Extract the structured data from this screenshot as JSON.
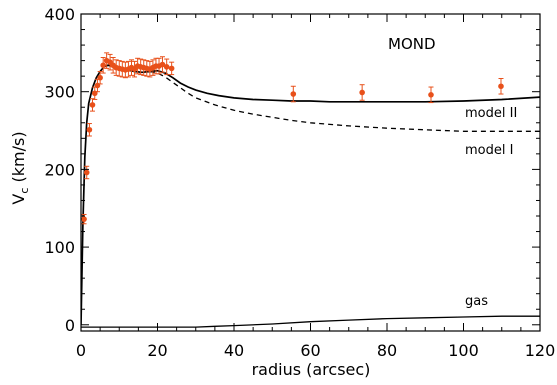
{
  "chart_data": {
    "type": "line",
    "title": "",
    "xlabel": "radius (arcsec)",
    "ylabel_main": "V",
    "ylabel_sub": "c",
    "ylabel_unit": " (km/s)",
    "xlim": [
      0,
      120
    ],
    "ylim": [
      -8,
      400
    ],
    "xticks": [
      0,
      20,
      40,
      60,
      80,
      100,
      120
    ],
    "yticks": [
      0,
      100,
      200,
      300,
      400
    ],
    "grid": false,
    "annotations": {
      "mond": "MOND",
      "model_II": "model II",
      "model_I": "model I",
      "gas": "gas"
    },
    "colors": {
      "data": "#e8501a",
      "curve": "#000000"
    },
    "series": [
      {
        "name": "model II",
        "style": "solid",
        "x": [
          0,
          0.5,
          1,
          1.5,
          2,
          3,
          4,
          5,
          6,
          7,
          8,
          10,
          12,
          14,
          16,
          18,
          20,
          22,
          24,
          26,
          28,
          30,
          33,
          36,
          40,
          45,
          50,
          55,
          60,
          65,
          70,
          80,
          90,
          100,
          110,
          120
        ],
        "y": [
          0,
          130,
          215,
          260,
          285,
          305,
          318,
          326,
          332,
          334,
          333,
          330,
          328,
          326,
          325,
          326,
          327,
          324,
          318,
          311,
          306,
          302,
          298,
          295,
          292,
          290,
          289,
          288,
          288,
          287,
          287,
          287,
          287,
          288,
          290,
          293
        ]
      },
      {
        "name": "model I",
        "style": "dashed",
        "x": [
          18,
          20,
          22,
          24,
          26,
          28,
          30,
          35,
          40,
          45,
          50,
          55,
          60,
          70,
          80,
          90,
          100,
          110,
          120
        ],
        "y": [
          326,
          324,
          319,
          312,
          305,
          298,
          292,
          283,
          276,
          271,
          267,
          263,
          260,
          256,
          253,
          251,
          249,
          249,
          249
        ]
      },
      {
        "name": "gas",
        "style": "solid",
        "x": [
          0,
          10,
          20,
          30,
          35,
          40,
          50,
          60,
          70,
          80,
          90,
          100,
          110,
          120
        ],
        "y": [
          -3,
          -3,
          -3,
          -3,
          -2,
          -1,
          1,
          4,
          6,
          8,
          9,
          10,
          11,
          11
        ]
      },
      {
        "name": "observed",
        "style": "points",
        "x": [
          0.8,
          1.5,
          2.2,
          3.0,
          3.6,
          4.3,
          5.0,
          5.8,
          6.7,
          7.6,
          8.4,
          9.2,
          10.0,
          10.8,
          11.6,
          12.4,
          13.2,
          14.0,
          14.8,
          15.6,
          16.4,
          17.2,
          18.0,
          18.8,
          19.6,
          20.4,
          21.3,
          22.4,
          23.7,
          55.5,
          73.5,
          91.5,
          109.8
        ],
        "y": [
          136,
          196,
          251,
          283,
          298,
          308,
          318,
          334,
          340,
          338,
          334,
          331,
          330,
          329,
          328,
          329,
          331,
          329,
          333,
          332,
          331,
          330,
          329,
          331,
          333,
          333,
          335,
          332,
          330,
          297,
          299,
          296,
          307
        ],
        "err": [
          6,
          8,
          8,
          8,
          8,
          8,
          8,
          10,
          10,
          10,
          10,
          10,
          10,
          10,
          10,
          10,
          10,
          10,
          10,
          10,
          10,
          10,
          10,
          10,
          10,
          10,
          10,
          10,
          8,
          10,
          10,
          10,
          10
        ]
      }
    ]
  }
}
